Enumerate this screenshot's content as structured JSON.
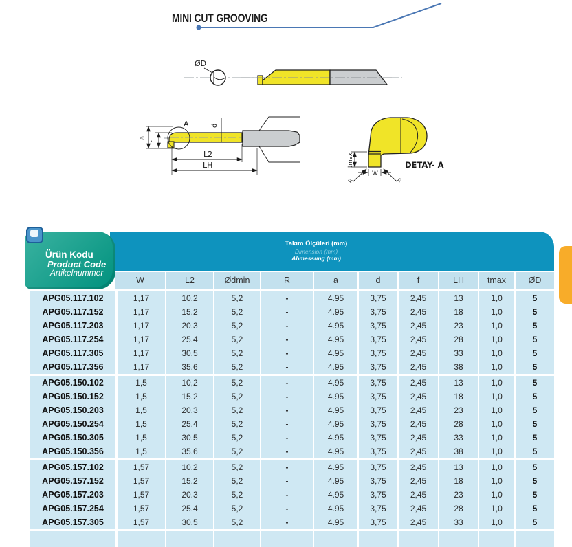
{
  "page": {
    "title": "MINI CUT GROOVING"
  },
  "drawings": {
    "labels": {
      "od_end": "ØD",
      "detail_marker": "A",
      "dim_a": "a",
      "dim_f": "f",
      "dim_d": "d",
      "dim_l2": "L2",
      "dim_lh": "LH",
      "dim_tmax": "tmax",
      "dim_w": "W",
      "dim_r_left": "R",
      "dim_r_right": "R",
      "detail_title": "DETAY- A"
    }
  },
  "table": {
    "product_code_header": {
      "tr": "Ürün Kodu",
      "en": "Product Code",
      "de": "Artikelnummer"
    },
    "dimension_header": {
      "tr": "Takım Ölçüleri (mm)",
      "en": "Dimension (mm)",
      "de": "Abmessung (mm)"
    },
    "columns": [
      "W",
      "L2",
      "Ødmin",
      "R",
      "a",
      "d",
      "f",
      "LH",
      "tmax",
      "ØD"
    ],
    "groups": [
      {
        "rows": [
          {
            "code": "APG05.117.102",
            "values": [
              "1,17",
              "10,2",
              "5,2",
              "-",
              "4.95",
              "3,75",
              "2,45",
              "13",
              "1,0",
              "5"
            ]
          },
          {
            "code": "APG05.117.152",
            "values": [
              "1,17",
              "15.2",
              "5,2",
              "-",
              "4.95",
              "3,75",
              "2,45",
              "18",
              "1,0",
              "5"
            ]
          },
          {
            "code": "APG05.117.203",
            "values": [
              "1,17",
              "20.3",
              "5,2",
              "-",
              "4.95",
              "3,75",
              "2,45",
              "23",
              "1,0",
              "5"
            ]
          },
          {
            "code": "APG05.117.254",
            "values": [
              "1,17",
              "25.4",
              "5,2",
              "-",
              "4.95",
              "3,75",
              "2,45",
              "28",
              "1,0",
              "5"
            ]
          },
          {
            "code": "APG05.117.305",
            "values": [
              "1,17",
              "30.5",
              "5,2",
              "-",
              "4.95",
              "3,75",
              "2,45",
              "33",
              "1,0",
              "5"
            ]
          },
          {
            "code": "APG05.117.356",
            "values": [
              "1,17",
              "35.6",
              "5,2",
              "-",
              "4.95",
              "3,75",
              "2,45",
              "38",
              "1,0",
              "5"
            ]
          }
        ]
      },
      {
        "rows": [
          {
            "code": "APG05.150.102",
            "values": [
              "1,5",
              "10,2",
              "5,2",
              "-",
              "4.95",
              "3,75",
              "2,45",
              "13",
              "1,0",
              "5"
            ]
          },
          {
            "code": "APG05.150.152",
            "values": [
              "1,5",
              "15.2",
              "5,2",
              "-",
              "4.95",
              "3,75",
              "2,45",
              "18",
              "1,0",
              "5"
            ]
          },
          {
            "code": "APG05.150.203",
            "values": [
              "1,5",
              "20.3",
              "5,2",
              "-",
              "4.95",
              "3,75",
              "2,45",
              "23",
              "1,0",
              "5"
            ]
          },
          {
            "code": "APG05.150.254",
            "values": [
              "1,5",
              "25.4",
              "5,2",
              "-",
              "4.95",
              "3,75",
              "2,45",
              "28",
              "1,0",
              "5"
            ]
          },
          {
            "code": "APG05.150.305",
            "values": [
              "1,5",
              "30.5",
              "5,2",
              "-",
              "4.95",
              "3,75",
              "2,45",
              "33",
              "1,0",
              "5"
            ]
          },
          {
            "code": "APG05.150.356",
            "values": [
              "1,5",
              "35.6",
              "5,2",
              "-",
              "4.95",
              "3,75",
              "2,45",
              "38",
              "1,0",
              "5"
            ]
          }
        ]
      },
      {
        "rows": [
          {
            "code": "APG05.157.102",
            "values": [
              "1,57",
              "10,2",
              "5,2",
              "-",
              "4.95",
              "3,75",
              "2,45",
              "13",
              "1,0",
              "5"
            ]
          },
          {
            "code": "APG05.157.152",
            "values": [
              "1,57",
              "15.2",
              "5,2",
              "-",
              "4.95",
              "3,75",
              "2,45",
              "18",
              "1,0",
              "5"
            ]
          },
          {
            "code": "APG05.157.203",
            "values": [
              "1,57",
              "20.3",
              "5,2",
              "-",
              "4.95",
              "3,75",
              "2,45",
              "23",
              "1,0",
              "5"
            ]
          },
          {
            "code": "APG05.157.254",
            "values": [
              "1,57",
              "25.4",
              "5,2",
              "-",
              "4.95",
              "3,75",
              "2,45",
              "28",
              "1,0",
              "5"
            ]
          },
          {
            "code": "APG05.157.305",
            "values": [
              "1,57",
              "30.5",
              "5,2",
              "-",
              "4.95",
              "3,75",
              "2,45",
              "33",
              "1,0",
              "5"
            ]
          }
        ]
      }
    ]
  },
  "colors": {
    "band_blue": "#0E93BE",
    "subheader_blue": "#C3E1EE",
    "body_blue": "#CFE8F3",
    "teal_header": "#00917E",
    "orange_tab": "#F8AC29",
    "title_line_blue": "#4a77b4",
    "tool_yellow": "#F0E428",
    "shank_gray": "#CBCED0"
  }
}
